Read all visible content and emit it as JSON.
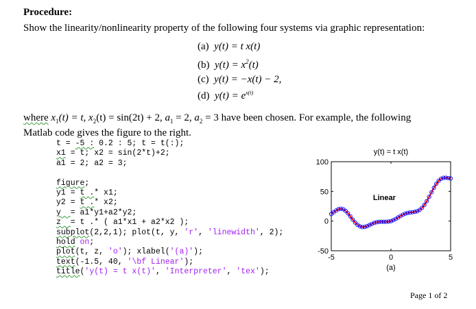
{
  "heading": "Procedure:",
  "intro": "Show the linearity/nonlinearity property of the following four systems via graphic representation:",
  "equations": [
    {
      "label": "(a)",
      "lhs": "y(t)",
      "rhs": "= t x(t)"
    },
    {
      "label": "(b)",
      "lhs": "y(t)",
      "rhs_base": "= x",
      "rhs_sup": "2",
      "rhs_tail": "(t)"
    },
    {
      "label": "(c)",
      "lhs": "y(t)",
      "rhs": "= −x(t) − 2,"
    },
    {
      "label": "(d)",
      "lhs": "y(t)",
      "rhs_base": "= e",
      "rhs_sup": "x(t)"
    }
  ],
  "where_line": {
    "w": "where",
    "x1": "x",
    "x1_sub": "1",
    "x1_def": "(t) = t,",
    "x2": "x",
    "x2_sub": "2",
    "x2_def": "(t) = sin(2t) + 2,",
    "a1": "a",
    "a1_sub": "1",
    "a1_def": "= 2,",
    "a2": "a",
    "a2_sub": "2",
    "a2_def": "= 3",
    "rest": "have been chosen. For example, the following"
  },
  "matlab_line": "Matlab code gives the figure to the right.",
  "code_lines": [
    [
      {
        "t": "t = "
      },
      {
        "t": "-5 :",
        "m": 1
      },
      {
        "t": " 0.2 : 5; t = t(:);"
      }
    ],
    [
      {
        "t": "x1",
        "m": 1
      },
      {
        "t": " = t; x2 = sin(2*t)+2;"
      }
    ],
    [
      {
        "t": "a1 = 2; a2 = 3;"
      }
    ],
    [
      {
        "t": ""
      }
    ],
    [
      {
        "t": "figure",
        "m": 1
      },
      {
        "t": ";"
      }
    ],
    [
      {
        "t": "y1 = "
      },
      {
        "t": "t .",
        "m": 1
      },
      {
        "t": "* x1;"
      }
    ],
    [
      {
        "t": "y2 = "
      },
      {
        "t": "t .",
        "m": 1
      },
      {
        "t": "* x2;"
      }
    ],
    [
      {
        "t": "y  ",
        "m": 1
      },
      {
        "t": "= a1*y1+a2*y2;"
      }
    ],
    [
      {
        "t": "z  ",
        "m": 1
      },
      {
        "t": "= t .* ( a1*x1 + a2*x2 );"
      }
    ],
    [
      {
        "t": "subplot",
        "m": 1
      },
      {
        "t": "(2,2,1); plot(t, y, "
      },
      {
        "t": "'r'",
        "s": 1
      },
      {
        "t": ", "
      },
      {
        "t": "'linewidth'",
        "s": 1
      },
      {
        "t": ", 2);"
      }
    ],
    [
      {
        "t": "hold",
        "m": 1
      },
      {
        "t": " "
      },
      {
        "t": "on",
        "s": 1
      },
      {
        "t": ";"
      }
    ],
    [
      {
        "t": "plot",
        "m": 1
      },
      {
        "t": "(t, z, "
      },
      {
        "t": "'o'",
        "s": 1
      },
      {
        "t": "); xlabel("
      },
      {
        "t": "'(a)'",
        "s": 1
      },
      {
        "t": ");"
      }
    ],
    [
      {
        "t": "text",
        "m": 1
      },
      {
        "t": "(-1.5, 40, "
      },
      {
        "t": "'\\bf Linear'",
        "s": 1
      },
      {
        "t": ");"
      }
    ],
    [
      {
        "t": "title",
        "m": 1
      },
      {
        "t": "("
      },
      {
        "t": "'y(t) = t x(t)'",
        "s": 1
      },
      {
        "t": ", "
      },
      {
        "t": "'Interpreter'",
        "s": 1
      },
      {
        "t": ", "
      },
      {
        "t": "'tex'",
        "s": 1
      },
      {
        "t": ");"
      }
    ]
  ],
  "page_label": "Page 1 of 2",
  "chart_data": {
    "type": "line",
    "title": "y(t) = t x(t)",
    "xlabel": "(a)",
    "ylabel": "",
    "xlim": [
      -5,
      5
    ],
    "ylim": [
      -50,
      100
    ],
    "xticks": [
      "-5",
      "0",
      "5"
    ],
    "yticks": [
      "100",
      "50",
      "0",
      "-50"
    ],
    "annotation": "Linear",
    "annotation_at": [
      -1.5,
      40
    ],
    "grid": false,
    "x": [
      -5,
      -4.8,
      -4.6,
      -4.4,
      -4.2,
      -4,
      -3.8,
      -3.6,
      -3.4,
      -3.2,
      -3,
      -2.8,
      -2.6,
      -2.4,
      -2.2,
      -2,
      -1.8,
      -1.6,
      -1.4,
      -1.2,
      -1,
      -0.8,
      -0.6,
      -0.4,
      -0.2,
      0,
      0.2,
      0.4,
      0.6,
      0.8,
      1,
      1.2,
      1.4,
      1.6,
      1.8,
      2,
      2.2,
      2.4,
      2.6,
      2.8,
      3,
      3.2,
      3.4,
      3.6,
      3.8,
      4,
      4.2,
      4.4,
      4.6,
      4.8,
      5
    ],
    "series": [
      {
        "style": "line",
        "color": "#ff0000",
        "values": [
          11.8,
          14.8,
          17.8,
          20.0,
          20.8,
          19.9,
          17.1,
          12.9,
          7.8,
          2.4,
          -2.5,
          -6.4,
          -9.0,
          -10.1,
          -9.8,
          -8.5,
          -6.7,
          -4.8,
          -3.1,
          -1.9,
          -1.3,
          -1.1,
          -1.2,
          -1.2,
          -0.9,
          0,
          1.5,
          3.6,
          6.0,
          8.5,
          10.7,
          12.5,
          13.7,
          14.4,
          14.9,
          15.5,
          16.6,
          18.7,
          22.2,
          27.2,
          33.5,
          40.8,
          48.6,
          56.1,
          62.7,
          67.9,
          71.2,
          72.8,
          73.0,
          72.4,
          71.8
        ]
      },
      {
        "style": "markers-o",
        "color": "#0000ff",
        "values": [
          11.8,
          14.8,
          17.8,
          20.0,
          20.8,
          19.9,
          17.1,
          12.9,
          7.8,
          2.4,
          -2.5,
          -6.4,
          -9.0,
          -10.1,
          -9.8,
          -8.5,
          -6.7,
          -4.8,
          -3.1,
          -1.9,
          -1.3,
          -1.1,
          -1.2,
          -1.2,
          -0.9,
          0,
          1.5,
          3.6,
          6.0,
          8.5,
          10.7,
          12.5,
          13.7,
          14.4,
          14.9,
          15.5,
          16.6,
          18.7,
          22.2,
          27.2,
          33.5,
          40.8,
          48.6,
          56.1,
          62.7,
          67.9,
          71.2,
          72.8,
          73.0,
          72.4,
          71.8
        ]
      }
    ]
  }
}
